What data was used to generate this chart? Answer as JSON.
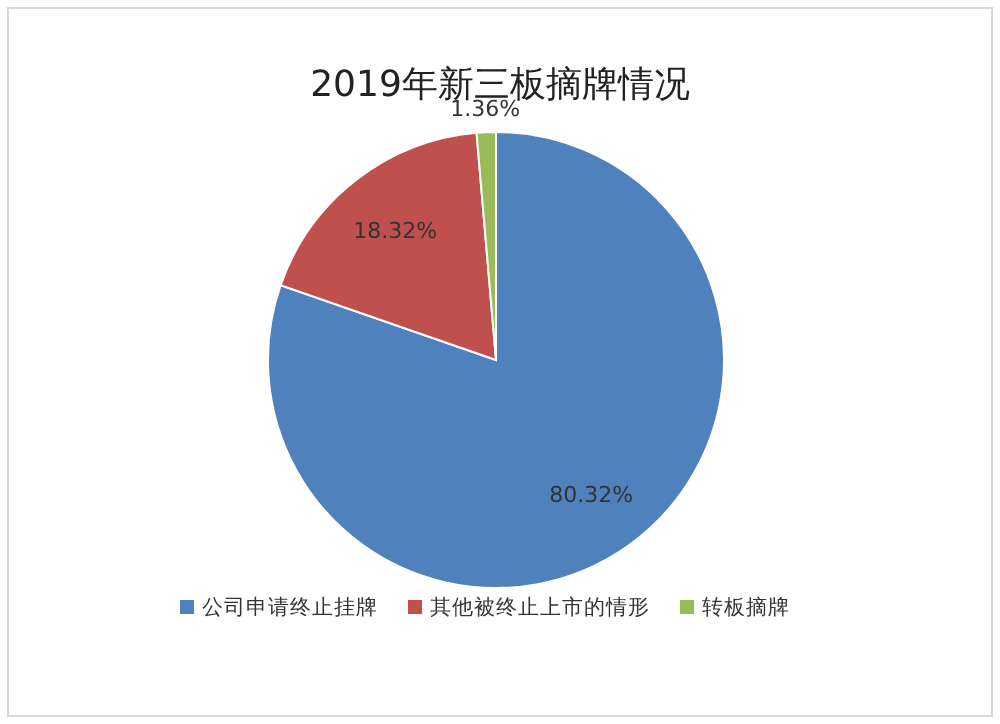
{
  "chart_data": {
    "type": "pie",
    "title": "2019年新三板摘牌情况",
    "categories": [
      "公司申请终止挂牌",
      "其他被终止上市的情形",
      "转板摘牌"
    ],
    "values": [
      80.32,
      18.32,
      1.36
    ],
    "colors": [
      "#4f81bd",
      "#c0504d",
      "#9bbb59"
    ],
    "value_labels": [
      "80.32%",
      "18.32%",
      "1.36%"
    ],
    "legend": "bottom"
  }
}
